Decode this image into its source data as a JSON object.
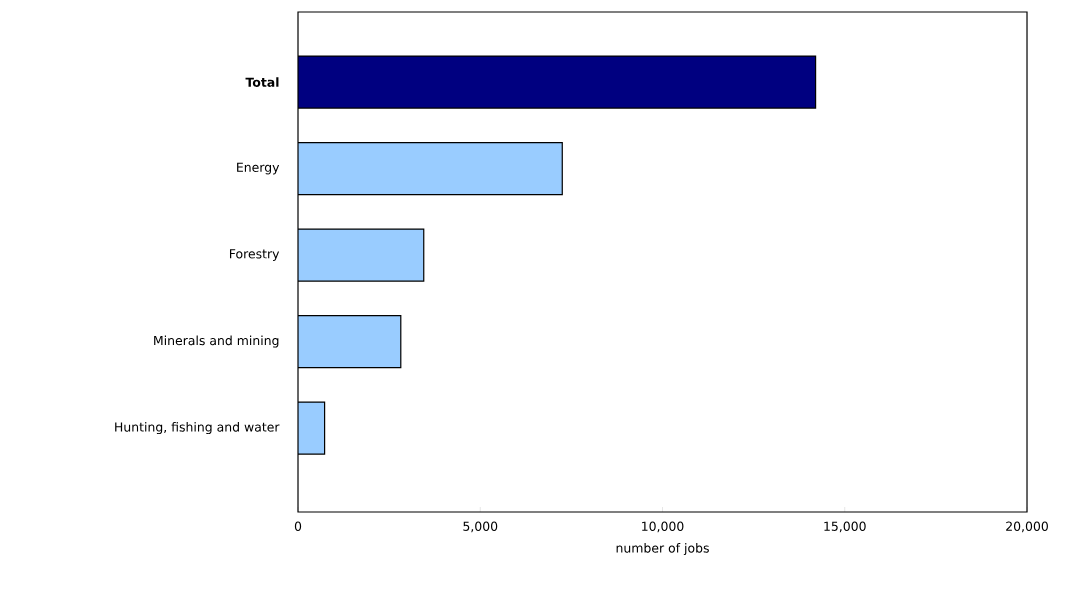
{
  "chart_data": {
    "type": "bar",
    "orientation": "horizontal",
    "xlabel": "number of jobs",
    "categories": [
      "**Total**",
      "Energy",
      "Forestry",
      "Minerals and mining",
      "Hunting, fishing and water"
    ],
    "values": [
      14200,
      7250,
      3450,
      2820,
      730
    ],
    "colors": [
      "#000080",
      "#99ccff",
      "#99ccff",
      "#99ccff",
      "#99ccff"
    ],
    "xlim": [
      0,
      20000
    ],
    "xticks": [
      0,
      {
        "value": 5000,
        "label": "5,000"
      },
      {
        "value": 10000,
        "label": "10,000"
      },
      {
        "value": 15000,
        "label": "15,000"
      },
      {
        "value": 20000,
        "label": "20,000"
      }
    ],
    "grid": false
  }
}
